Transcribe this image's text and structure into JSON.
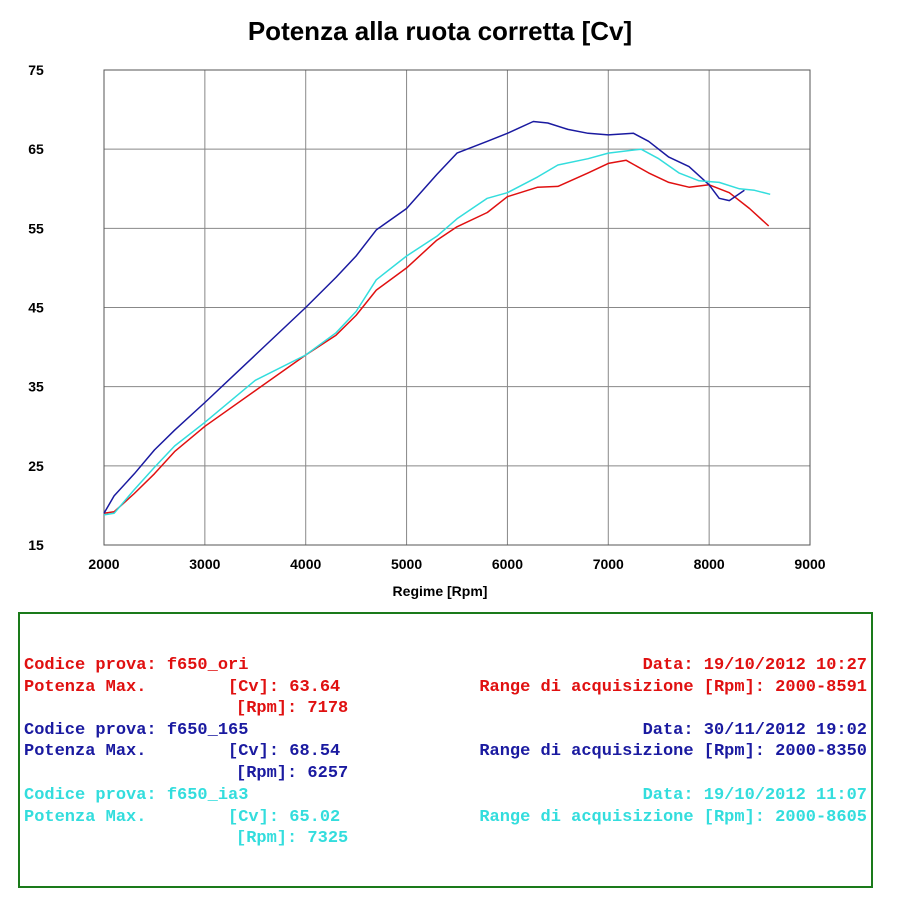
{
  "chart_data": {
    "type": "line",
    "title": "Potenza alla ruota corretta [Cv]",
    "xlabel": "Regime [Rpm]",
    "ylabel": "",
    "xlim": [
      2000,
      9000
    ],
    "ylim": [
      15,
      75
    ],
    "x_ticks": [
      2000,
      3000,
      4000,
      5000,
      6000,
      7000,
      8000,
      9000
    ],
    "y_ticks": [
      15,
      25,
      35,
      45,
      55,
      65,
      75
    ],
    "grid": true,
    "series": [
      {
        "name": "f650_ori",
        "color": "#e01010",
        "x": [
          2000,
          2100,
          2300,
          2500,
          2700,
          3000,
          3500,
          4000,
          4300,
          4500,
          4700,
          5000,
          5300,
          5500,
          5800,
          6000,
          6300,
          6500,
          6800,
          7000,
          7178,
          7400,
          7600,
          7800,
          8000,
          8200,
          8400,
          8591
        ],
        "values": [
          19.0,
          19.2,
          21.5,
          24.0,
          26.8,
          30.0,
          34.5,
          39.0,
          41.5,
          44.0,
          47.2,
          50.0,
          53.5,
          55.2,
          57.0,
          59.0,
          60.2,
          60.3,
          62.0,
          63.2,
          63.6,
          62.0,
          60.8,
          60.2,
          60.5,
          59.5,
          57.5,
          55.3
        ]
      },
      {
        "name": "f650_165",
        "color": "#1a1aa0",
        "x": [
          2000,
          2100,
          2300,
          2500,
          2700,
          3000,
          3500,
          4000,
          4300,
          4500,
          4700,
          5000,
          5300,
          5500,
          5800,
          6000,
          6257,
          6400,
          6600,
          6800,
          7000,
          7250,
          7400,
          7600,
          7800,
          8000,
          8100,
          8200,
          8350
        ],
        "values": [
          19.0,
          21.2,
          24.0,
          27.0,
          29.5,
          33.0,
          39.0,
          45.0,
          48.8,
          51.5,
          54.8,
          57.5,
          61.8,
          64.5,
          66.0,
          67.0,
          68.5,
          68.3,
          67.5,
          67.0,
          66.8,
          67.0,
          66.0,
          64.0,
          62.8,
          60.5,
          58.8,
          58.5,
          59.8
        ]
      },
      {
        "name": "f650_ia3",
        "color": "#33dddd",
        "x": [
          2000,
          2100,
          2300,
          2500,
          2700,
          3000,
          3500,
          4000,
          4300,
          4500,
          4700,
          5000,
          5300,
          5500,
          5800,
          6000,
          6300,
          6500,
          6800,
          7000,
          7325,
          7500,
          7700,
          7900,
          8100,
          8300,
          8450,
          8605
        ],
        "values": [
          18.8,
          19.0,
          22.0,
          24.8,
          27.5,
          30.5,
          35.8,
          39.0,
          41.8,
          44.5,
          48.5,
          51.5,
          54.0,
          56.2,
          58.8,
          59.5,
          61.5,
          63.0,
          63.8,
          64.5,
          65.0,
          63.8,
          62.0,
          61.0,
          60.8,
          60.0,
          59.8,
          59.3
        ]
      }
    ]
  },
  "info": {
    "border_color": "#1a7a1a",
    "runs": [
      {
        "color": "#e01010",
        "codice": "Codice prova: f650_ori",
        "data": "Data: 19/10/2012 10:27",
        "potenza": "Potenza Max.        [Cv]: 63.64",
        "range": "Range di acquisizione [Rpm]: 2000-8591",
        "rpm": "[Rpm]: 7178"
      },
      {
        "color": "#1a1aa0",
        "codice": "Codice prova: f650_165",
        "data": "Data: 30/11/2012 19:02",
        "potenza": "Potenza Max.        [Cv]: 68.54",
        "range": "Range di acquisizione [Rpm]: 2000-8350",
        "rpm": "[Rpm]: 6257"
      },
      {
        "color": "#33dddd",
        "codice": "Codice prova: f650_ia3",
        "data": "Data: 19/10/2012 11:07",
        "potenza": "Potenza Max.        [Cv]: 65.02",
        "range": "Range di acquisizione [Rpm]: 2000-8605",
        "rpm": "[Rpm]: 7325"
      }
    ]
  }
}
